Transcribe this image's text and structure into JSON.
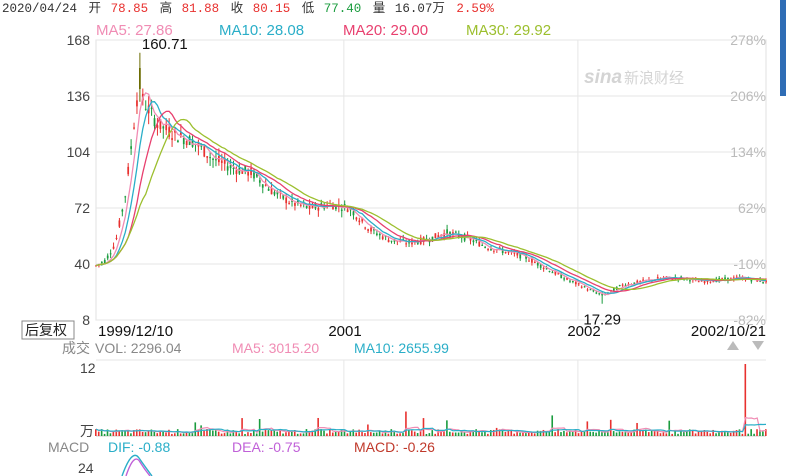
{
  "header": {
    "date": "2020/04/24",
    "open_label": "开",
    "open": "78.85",
    "high_label": "高",
    "high": "81.88",
    "close_label": "收",
    "close": "80.15",
    "low_label": "低",
    "low": "77.40",
    "volume_label": "量",
    "volume": "16.07万",
    "change": "2.59%"
  },
  "ma_legend": [
    {
      "label": "MA5: 27.86",
      "color": "#f08cb4"
    },
    {
      "label": "MA10: 28.08",
      "color": "#2aaec8"
    },
    {
      "label": "MA20: 29.00",
      "color": "#e8406f"
    },
    {
      "label": "MA30: 29.92",
      "color": "#9cbf2e"
    }
  ],
  "watermark": "新浪财经",
  "fuquan_button": "后复权",
  "volume_panel": {
    "title": "成交",
    "vol": "VOL: 2296.04",
    "ma5": "MA5: 3015.20",
    "ma10": "MA10: 2655.99",
    "axis_top": "12",
    "unit": "万"
  },
  "macd_panel": {
    "title": "MACD",
    "dif": "DIF: -0.88",
    "dea": "DEA: -0.75",
    "macd": "MACD: -0.26",
    "axis_top": "24"
  },
  "colors": {
    "up": "#e8312f",
    "down": "#1a9c3e",
    "grid": "#e6e6e6",
    "peak_bar": "#6b6b00",
    "ma5": "#f08cb4",
    "ma10": "#2aaec8",
    "ma20": "#e8406f",
    "ma30": "#9cbf2e",
    "dif": "#2aaec8",
    "dea": "#c060d8"
  },
  "chart_data": {
    "type": "candlestick",
    "x_tick_labels": [
      "1999/12/10",
      "2001",
      "2002",
      "2002/10/21"
    ],
    "y_ticks_left": [
      168,
      136,
      104,
      72,
      40,
      8
    ],
    "y_ticks_right": [
      "278%",
      "206%",
      "134%",
      "62%",
      "-10%",
      "-82%"
    ],
    "ylim": [
      8,
      168
    ],
    "annotations": [
      {
        "label": "160.71",
        "date": "2000/02",
        "value": 160.71,
        "kind": "high"
      },
      {
        "label": "17.29",
        "date": "2002/02",
        "value": 17.29,
        "kind": "low"
      }
    ],
    "price_trend": {
      "dates": [
        "1999/12/10",
        "1999/12/25",
        "2000/01/10",
        "2000/01/25",
        "2000/02/05",
        "2000/02/15",
        "2000/02/25",
        "2000/03/15",
        "2000/04/10",
        "2000/05/10",
        "2000/06/10",
        "2000/07/10",
        "2000/08/10",
        "2000/09/10",
        "2000/10/10",
        "2000/11/10",
        "2000/12/10",
        "2001/01/10",
        "2001/02/10",
        "2001/03/10",
        "2001/04/10",
        "2001/05/10",
        "2001/06/10",
        "2001/07/10",
        "2001/08/10",
        "2001/09/10",
        "2001/10/10",
        "2001/11/10",
        "2001/12/10",
        "2002/01/15",
        "2002/02/10",
        "2002/03/10",
        "2002/04/10",
        "2002/05/10",
        "2002/06/10",
        "2002/07/10",
        "2002/08/10",
        "2002/09/10",
        "2002/10/21"
      ],
      "close": [
        39,
        42,
        52,
        78,
        110,
        140,
        132,
        120,
        114,
        110,
        100,
        95,
        92,
        82,
        75,
        72,
        74,
        72,
        60,
        54,
        52,
        54,
        58,
        55,
        50,
        47,
        44,
        38,
        32,
        26,
        22,
        28,
        30,
        32,
        32,
        30,
        31,
        32,
        30
      ]
    },
    "volume": {
      "unit": "万",
      "ylim": [
        0,
        12
      ],
      "last": 2296.04,
      "ma5": 3015.2,
      "ma10": 2655.99
    },
    "macd": {
      "dif": -0.88,
      "dea": -0.75,
      "macd": -0.26
    }
  }
}
